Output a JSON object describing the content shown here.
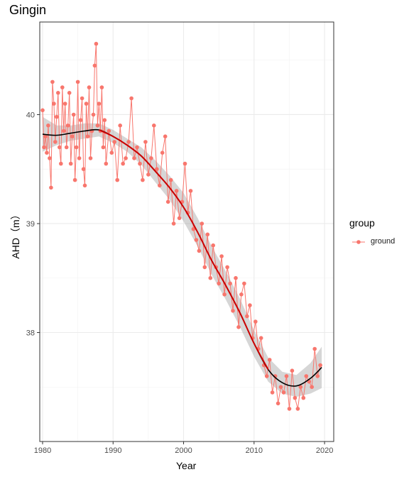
{
  "chart_data": {
    "type": "scatter",
    "title": "Gingin",
    "xlabel": "Year",
    "ylabel": "AHD（m）",
    "xlim": [
      1979.6,
      2021.3
    ],
    "ylim": [
      37.0,
      40.85
    ],
    "xticks": [
      "1980",
      "1990",
      "2000",
      "2010",
      "2020"
    ],
    "yticks": [
      "38",
      "39",
      "40"
    ],
    "grid": true,
    "legend": {
      "title": "group",
      "entries": [
        "ground"
      ],
      "position": "right"
    },
    "series": [
      {
        "name": "ground",
        "color": "#F8766D",
        "style": "line+points",
        "x": [
          1980.0,
          1980.2,
          1980.4,
          1980.6,
          1980.8,
          1981.0,
          1981.2,
          1981.4,
          1981.6,
          1981.8,
          1982.0,
          1982.2,
          1982.4,
          1982.6,
          1982.8,
          1983.0,
          1983.2,
          1983.4,
          1983.6,
          1983.8,
          1984.0,
          1984.2,
          1984.4,
          1984.6,
          1984.8,
          1985.0,
          1985.2,
          1985.4,
          1985.6,
          1985.8,
          1986.0,
          1986.2,
          1986.4,
          1986.6,
          1986.8,
          1987.0,
          1987.2,
          1987.4,
          1987.6,
          1987.8,
          1988.0,
          1988.2,
          1988.4,
          1988.6,
          1988.8,
          1989.0,
          1989.4,
          1989.8,
          1990.2,
          1990.6,
          1991.0,
          1991.4,
          1991.8,
          1992.2,
          1992.6,
          1993.0,
          1993.4,
          1993.8,
          1994.2,
          1994.6,
          1995.0,
          1995.4,
          1995.8,
          1996.2,
          1996.6,
          1997.0,
          1997.4,
          1997.8,
          1998.2,
          1998.6,
          1999.0,
          1999.4,
          1999.8,
          2000.2,
          2000.6,
          2001.0,
          2001.4,
          2001.8,
          2002.2,
          2002.6,
          2003.0,
          2003.4,
          2003.8,
          2004.2,
          2004.6,
          2005.0,
          2005.4,
          2005.8,
          2006.2,
          2006.6,
          2007.0,
          2007.4,
          2007.8,
          2008.2,
          2008.6,
          2009.0,
          2009.4,
          2009.8,
          2010.2,
          2010.6,
          2011.0,
          2011.4,
          2011.8,
          2012.2,
          2012.6,
          2013.0,
          2013.4,
          2013.8,
          2014.2,
          2014.6,
          2015.0,
          2015.4,
          2015.8,
          2016.2,
          2016.6,
          2017.0,
          2017.4,
          2017.8,
          2018.2,
          2018.6,
          2019.0,
          2019.4
        ],
        "y": [
          40.04,
          39.7,
          39.8,
          39.65,
          39.9,
          39.6,
          39.33,
          40.3,
          40.1,
          39.75,
          39.98,
          40.2,
          39.7,
          39.55,
          40.25,
          39.85,
          40.1,
          39.7,
          39.9,
          40.2,
          39.55,
          39.8,
          40.0,
          39.4,
          39.7,
          40.3,
          39.6,
          39.95,
          40.15,
          39.5,
          39.35,
          40.1,
          39.8,
          40.25,
          39.6,
          39.85,
          40.0,
          40.45,
          40.65,
          39.9,
          40.1,
          39.85,
          40.25,
          39.7,
          39.95,
          39.55,
          39.85,
          39.65,
          39.75,
          39.4,
          39.9,
          39.55,
          39.6,
          39.75,
          40.15,
          39.6,
          39.7,
          39.55,
          39.4,
          39.75,
          39.45,
          39.6,
          39.9,
          39.5,
          39.35,
          39.65,
          39.8,
          39.2,
          39.4,
          39.0,
          39.3,
          39.05,
          39.2,
          39.55,
          39.1,
          39.3,
          38.95,
          38.85,
          38.75,
          39.0,
          38.6,
          38.9,
          38.5,
          38.8,
          38.6,
          38.45,
          38.7,
          38.35,
          38.6,
          38.45,
          38.2,
          38.5,
          38.05,
          38.35,
          38.45,
          38.15,
          38.25,
          37.95,
          38.1,
          37.85,
          37.95,
          37.7,
          37.6,
          37.75,
          37.45,
          37.6,
          37.35,
          37.5,
          37.45,
          37.6,
          37.3,
          37.65,
          37.4,
          37.3,
          37.5,
          37.4,
          37.6,
          37.55,
          37.5,
          37.85,
          37.6,
          37.7
        ]
      },
      {
        "name": "",
        "color": "#000000",
        "style": "smooth",
        "x": [
          1980,
          1982,
          1984,
          1986,
          1988,
          1990,
          1992,
          1994,
          1996,
          1998,
          2000,
          2002,
          2004,
          2006,
          2008,
          2010,
          2012,
          2014,
          2016,
          2018,
          2019.6
        ],
        "y": [
          39.82,
          39.81,
          39.83,
          39.85,
          39.86,
          39.8,
          39.72,
          39.62,
          39.48,
          39.33,
          39.15,
          38.92,
          38.66,
          38.43,
          38.18,
          37.9,
          37.66,
          37.54,
          37.51,
          37.58,
          37.68
        ],
        "band_upper": [
          39.98,
          39.9,
          39.9,
          39.92,
          39.92,
          39.86,
          39.78,
          39.7,
          39.58,
          39.44,
          39.28,
          39.05,
          38.79,
          38.56,
          38.31,
          38.02,
          37.77,
          37.64,
          37.61,
          37.72,
          37.87
        ],
        "band_lower": [
          39.66,
          39.72,
          39.76,
          39.78,
          39.8,
          39.74,
          39.66,
          39.54,
          39.38,
          39.22,
          39.02,
          38.79,
          38.53,
          38.3,
          38.05,
          37.78,
          37.55,
          37.44,
          37.41,
          37.44,
          37.49
        ]
      },
      {
        "name": "",
        "color": "#CC0000",
        "style": "smooth",
        "x": [
          1988,
          1990,
          1992,
          1994,
          1996,
          1998,
          2000,
          2002,
          2004,
          2006,
          2008,
          2010,
          2012
        ],
        "y": [
          39.86,
          39.8,
          39.72,
          39.62,
          39.48,
          39.33,
          39.15,
          38.92,
          38.66,
          38.43,
          38.18,
          37.9,
          37.66
        ]
      }
    ]
  }
}
